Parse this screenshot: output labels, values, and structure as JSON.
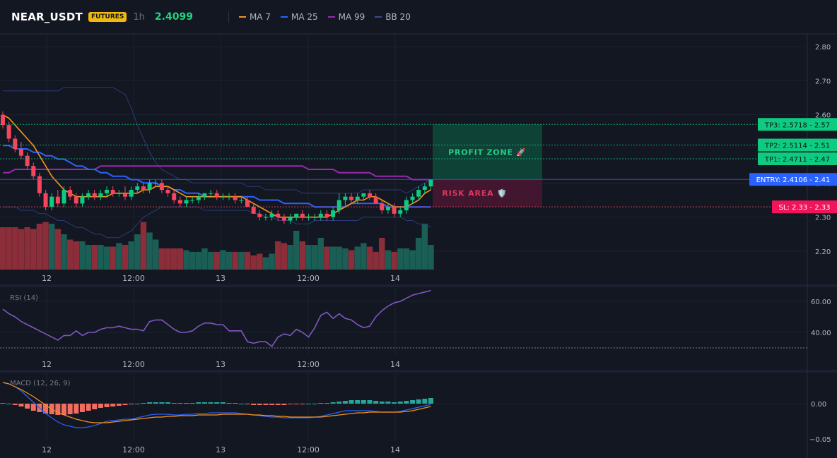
{
  "header": {
    "symbol": "NEAR_USDT",
    "badge": "FUTURES",
    "timeframe": "1h",
    "last_price": "2.4099",
    "legend": [
      {
        "label": "MA 7",
        "color": "#f7931a"
      },
      {
        "label": "MA 25",
        "color": "#2962ff"
      },
      {
        "label": "MA 99",
        "color": "#9c27b0"
      },
      {
        "label": "BB 20",
        "color": "#3a4a8a"
      }
    ]
  },
  "colors": {
    "up": "#26a69a",
    "up_bright": "#0ecb81",
    "down": "#f6465d",
    "vol_up": "#1b5e56",
    "vol_down": "#8b2e3a",
    "rsi": "#7e57c2"
  },
  "x_axis_labels": [
    "12",
    "12:00",
    "13",
    "12:00",
    "14"
  ],
  "chart_data": [
    {
      "type": "candlestick",
      "panel": "price",
      "ylim": [
        2.15,
        2.83
      ],
      "y_ticks": [
        "2.80",
        "2.70",
        "2.60",
        "2.40",
        "2.30",
        "2.20"
      ],
      "candles_ohlc": [
        [
          2.6,
          2.61,
          2.56,
          2.57
        ],
        [
          2.57,
          2.58,
          2.52,
          2.53
        ],
        [
          2.53,
          2.54,
          2.49,
          2.5
        ],
        [
          2.5,
          2.52,
          2.47,
          2.48
        ],
        [
          2.48,
          2.49,
          2.44,
          2.45
        ],
        [
          2.45,
          2.46,
          2.41,
          2.42
        ],
        [
          2.42,
          2.43,
          2.36,
          2.37
        ],
        [
          2.37,
          2.38,
          2.32,
          2.33
        ],
        [
          2.33,
          2.37,
          2.32,
          2.36
        ],
        [
          2.36,
          2.38,
          2.33,
          2.34
        ],
        [
          2.34,
          2.39,
          2.33,
          2.38
        ],
        [
          2.38,
          2.39,
          2.35,
          2.36
        ],
        [
          2.36,
          2.37,
          2.33,
          2.34
        ],
        [
          2.34,
          2.37,
          2.33,
          2.36
        ],
        [
          2.36,
          2.38,
          2.35,
          2.37
        ],
        [
          2.37,
          2.38,
          2.35,
          2.36
        ],
        [
          2.36,
          2.38,
          2.35,
          2.37
        ],
        [
          2.37,
          2.39,
          2.36,
          2.38
        ],
        [
          2.38,
          2.39,
          2.36,
          2.37
        ],
        [
          2.37,
          2.38,
          2.36,
          2.37
        ],
        [
          2.37,
          2.39,
          2.35,
          2.36
        ],
        [
          2.36,
          2.39,
          2.35,
          2.38
        ],
        [
          2.38,
          2.4,
          2.37,
          2.39
        ],
        [
          2.39,
          2.4,
          2.37,
          2.38
        ],
        [
          2.38,
          2.41,
          2.37,
          2.4
        ],
        [
          2.4,
          2.41,
          2.39,
          2.4
        ],
        [
          2.4,
          2.41,
          2.37,
          2.38
        ],
        [
          2.38,
          2.39,
          2.36,
          2.37
        ],
        [
          2.37,
          2.38,
          2.34,
          2.35
        ],
        [
          2.35,
          2.36,
          2.33,
          2.34
        ],
        [
          2.34,
          2.36,
          2.33,
          2.35
        ],
        [
          2.35,
          2.36,
          2.34,
          2.35
        ],
        [
          2.35,
          2.37,
          2.34,
          2.36
        ],
        [
          2.36,
          2.37,
          2.35,
          2.37
        ],
        [
          2.37,
          2.38,
          2.36,
          2.37
        ],
        [
          2.37,
          2.38,
          2.35,
          2.36
        ],
        [
          2.36,
          2.37,
          2.35,
          2.36
        ],
        [
          2.36,
          2.37,
          2.35,
          2.36
        ],
        [
          2.36,
          2.37,
          2.34,
          2.35
        ],
        [
          2.35,
          2.36,
          2.34,
          2.35
        ],
        [
          2.35,
          2.36,
          2.33,
          2.33
        ],
        [
          2.33,
          2.34,
          2.31,
          2.31
        ],
        [
          2.31,
          2.32,
          2.29,
          2.3
        ],
        [
          2.3,
          2.31,
          2.29,
          2.3
        ],
        [
          2.3,
          2.32,
          2.29,
          2.31
        ],
        [
          2.31,
          2.32,
          2.29,
          2.3
        ],
        [
          2.3,
          2.31,
          2.28,
          2.29
        ],
        [
          2.29,
          2.31,
          2.28,
          2.3
        ],
        [
          2.3,
          2.31,
          2.29,
          2.31
        ],
        [
          2.31,
          2.32,
          2.29,
          2.3
        ],
        [
          2.3,
          2.31,
          2.29,
          2.3
        ],
        [
          2.3,
          2.31,
          2.29,
          2.3
        ],
        [
          2.3,
          2.32,
          2.29,
          2.31
        ],
        [
          2.31,
          2.32,
          2.29,
          2.3
        ],
        [
          2.3,
          2.33,
          2.29,
          2.32
        ],
        [
          2.32,
          2.37,
          2.31,
          2.35
        ],
        [
          2.35,
          2.37,
          2.33,
          2.36
        ],
        [
          2.36,
          2.37,
          2.34,
          2.35
        ],
        [
          2.35,
          2.37,
          2.34,
          2.36
        ],
        [
          2.36,
          2.37,
          2.35,
          2.37
        ],
        [
          2.37,
          2.38,
          2.35,
          2.36
        ],
        [
          2.36,
          2.37,
          2.34,
          2.34
        ],
        [
          2.34,
          2.35,
          2.31,
          2.32
        ],
        [
          2.32,
          2.34,
          2.31,
          2.33
        ],
        [
          2.33,
          2.34,
          2.3,
          2.31
        ],
        [
          2.31,
          2.33,
          2.3,
          2.32
        ],
        [
          2.32,
          2.36,
          2.31,
          2.35
        ],
        [
          2.35,
          2.37,
          2.34,
          2.36
        ],
        [
          2.36,
          2.39,
          2.35,
          2.38
        ],
        [
          2.38,
          2.4,
          2.37,
          2.39
        ],
        [
          2.39,
          2.41,
          2.38,
          2.41
        ]
      ],
      "volume": [
        24,
        24,
        24,
        23,
        24,
        23,
        26,
        27,
        26,
        23,
        20,
        17,
        16,
        16,
        14,
        14,
        14,
        13,
        13,
        15,
        14,
        16,
        20,
        27,
        21,
        17,
        12,
        12,
        12,
        12,
        11,
        10,
        10,
        12,
        10,
        10,
        11,
        10,
        10,
        10,
        10,
        8,
        9,
        7,
        9,
        16,
        15,
        14,
        22,
        16,
        14,
        14,
        18,
        13,
        13,
        13,
        12,
        11,
        13,
        15,
        13,
        10,
        18,
        11,
        10,
        12,
        12,
        11,
        18,
        26,
        14
      ],
      "volume_scale_max": 30,
      "ma7": [
        2.6,
        2.59,
        2.57,
        2.55,
        2.53,
        2.51,
        2.48,
        2.45,
        2.42,
        2.4,
        2.38,
        2.37,
        2.36,
        2.36,
        2.36,
        2.36,
        2.36,
        2.36,
        2.37,
        2.37,
        2.37,
        2.37,
        2.37,
        2.38,
        2.38,
        2.39,
        2.39,
        2.39,
        2.38,
        2.37,
        2.36,
        2.36,
        2.36,
        2.36,
        2.36,
        2.36,
        2.36,
        2.36,
        2.36,
        2.36,
        2.35,
        2.34,
        2.33,
        2.32,
        2.31,
        2.3,
        2.3,
        2.3,
        2.3,
        2.3,
        2.3,
        2.3,
        2.3,
        2.3,
        2.31,
        2.32,
        2.33,
        2.34,
        2.35,
        2.35,
        2.36,
        2.36,
        2.35,
        2.34,
        2.33,
        2.33,
        2.33,
        2.34,
        2.35,
        2.37,
        2.38
      ],
      "ma25": [
        2.51,
        2.51,
        2.5,
        2.5,
        2.5,
        2.49,
        2.49,
        2.48,
        2.48,
        2.47,
        2.47,
        2.46,
        2.45,
        2.45,
        2.44,
        2.44,
        2.43,
        2.43,
        2.42,
        2.42,
        2.42,
        2.41,
        2.41,
        2.4,
        2.4,
        2.4,
        2.39,
        2.39,
        2.38,
        2.38,
        2.37,
        2.37,
        2.37,
        2.36,
        2.36,
        2.36,
        2.36,
        2.36,
        2.36,
        2.36,
        2.36,
        2.36,
        2.35,
        2.35,
        2.35,
        2.35,
        2.34,
        2.34,
        2.34,
        2.34,
        2.34,
        2.33,
        2.33,
        2.33,
        2.33,
        2.33,
        2.33,
        2.34,
        2.34,
        2.34,
        2.34,
        2.34,
        2.34,
        2.33,
        2.33,
        2.33,
        2.33,
        2.33,
        2.33,
        2.33,
        2.33
      ],
      "ma99": [
        2.43,
        2.43,
        2.44,
        2.44,
        2.44,
        2.44,
        2.44,
        2.44,
        2.44,
        2.44,
        2.44,
        2.44,
        2.44,
        2.44,
        2.44,
        2.44,
        2.45,
        2.45,
        2.45,
        2.45,
        2.45,
        2.45,
        2.45,
        2.45,
        2.45,
        2.45,
        2.45,
        2.45,
        2.45,
        2.45,
        2.45,
        2.45,
        2.45,
        2.45,
        2.45,
        2.45,
        2.45,
        2.45,
        2.45,
        2.45,
        2.45,
        2.45,
        2.45,
        2.45,
        2.45,
        2.45,
        2.45,
        2.45,
        2.45,
        2.45,
        2.44,
        2.44,
        2.44,
        2.44,
        2.44,
        2.43,
        2.43,
        2.43,
        2.43,
        2.43,
        2.43,
        2.42,
        2.42,
        2.42,
        2.42,
        2.42,
        2.42,
        2.41,
        2.41,
        2.41,
        2.41
      ],
      "bb_upper": [
        2.67,
        2.67,
        2.67,
        2.67,
        2.67,
        2.67,
        2.67,
        2.67,
        2.67,
        2.67,
        2.68,
        2.68,
        2.68,
        2.68,
        2.68,
        2.68,
        2.68,
        2.68,
        2.68,
        2.67,
        2.66,
        2.62,
        2.57,
        2.53,
        2.49,
        2.46,
        2.44,
        2.43,
        2.42,
        2.41,
        2.41,
        2.4,
        2.4,
        2.4,
        2.4,
        2.4,
        2.4,
        2.4,
        2.4,
        2.4,
        2.39,
        2.39,
        2.39,
        2.38,
        2.38,
        2.38,
        2.38,
        2.38,
        2.38,
        2.37,
        2.37,
        2.37,
        2.37,
        2.37,
        2.37,
        2.37,
        2.37,
        2.37,
        2.37,
        2.38,
        2.38,
        2.38,
        2.38,
        2.38,
        2.38,
        2.38,
        2.37,
        2.38,
        2.39,
        2.4,
        2.41
      ],
      "bb_lower": [
        2.33,
        2.33,
        2.33,
        2.32,
        2.32,
        2.32,
        2.31,
        2.31,
        2.3,
        2.29,
        2.29,
        2.28,
        2.27,
        2.27,
        2.26,
        2.25,
        2.25,
        2.24,
        2.24,
        2.24,
        2.25,
        2.26,
        2.28,
        2.3,
        2.31,
        2.32,
        2.33,
        2.33,
        2.33,
        2.33,
        2.33,
        2.33,
        2.33,
        2.32,
        2.32,
        2.32,
        2.32,
        2.32,
        2.32,
        2.32,
        2.32,
        2.31,
        2.31,
        2.3,
        2.3,
        2.29,
        2.29,
        2.29,
        2.28,
        2.28,
        2.28,
        2.29,
        2.29,
        2.29,
        2.29,
        2.29,
        2.29,
        2.29,
        2.29,
        2.3,
        2.3,
        2.3,
        2.3,
        2.3,
        2.3,
        2.3,
        2.29,
        2.29,
        2.28,
        2.28,
        2.27
      ]
    },
    {
      "type": "line",
      "panel": "rsi",
      "title": "RSI (14)",
      "ylim": [
        25,
        70
      ],
      "y_ticks": [
        "60.00",
        "40.00"
      ],
      "oversold_level": 30,
      "values": [
        55,
        52,
        50,
        47,
        45,
        43,
        41,
        39,
        37,
        35,
        38,
        38,
        41,
        38,
        40,
        40,
        42,
        43,
        43,
        44,
        43,
        42,
        42,
        41,
        47,
        48,
        48,
        45,
        42,
        40,
        40,
        41,
        44,
        46,
        46,
        45,
        45,
        41,
        41,
        41,
        34,
        33,
        34,
        34,
        31,
        37,
        39,
        38,
        42,
        40,
        37,
        43,
        51,
        53,
        49,
        52,
        49,
        48,
        45,
        43,
        44,
        50,
        54,
        57,
        59,
        60,
        62,
        64,
        65,
        66,
        67
      ]
    },
    {
      "type": "bar",
      "panel": "macd",
      "title": "MACD (12, 26, 9)",
      "ylim": [
        -0.05,
        0.04
      ],
      "y_ticks": [
        "0.00",
        "−0.05"
      ],
      "histogram": [
        0.001,
        0.0,
        -0.002,
        -0.004,
        -0.007,
        -0.01,
        -0.012,
        -0.014,
        -0.015,
        -0.016,
        -0.016,
        -0.015,
        -0.014,
        -0.012,
        -0.01,
        -0.008,
        -0.006,
        -0.005,
        -0.004,
        -0.003,
        -0.002,
        -0.001,
        0.0,
        0.001,
        0.002,
        0.002,
        0.002,
        0.002,
        0.001,
        0.001,
        0.001,
        0.001,
        0.002,
        0.002,
        0.002,
        0.002,
        0.002,
        0.001,
        0.001,
        0.0,
        -0.001,
        -0.002,
        -0.002,
        -0.002,
        -0.002,
        -0.002,
        -0.002,
        -0.001,
        -0.001,
        -0.001,
        0.0,
        0.0,
        0.001,
        0.001,
        0.002,
        0.003,
        0.004,
        0.005,
        0.005,
        0.005,
        0.005,
        0.004,
        0.003,
        0.003,
        0.002,
        0.003,
        0.004,
        0.005,
        0.006,
        0.007,
        0.008
      ],
      "macd_line": [
        0.03,
        0.028,
        0.024,
        0.018,
        0.01,
        0.002,
        -0.006,
        -0.014,
        -0.02,
        -0.026,
        -0.03,
        -0.032,
        -0.034,
        -0.034,
        -0.033,
        -0.031,
        -0.028,
        -0.025,
        -0.024,
        -0.023,
        -0.022,
        -0.022,
        -0.02,
        -0.018,
        -0.016,
        -0.015,
        -0.015,
        -0.015,
        -0.016,
        -0.016,
        -0.015,
        -0.015,
        -0.014,
        -0.014,
        -0.013,
        -0.013,
        -0.013,
        -0.013,
        -0.013,
        -0.014,
        -0.015,
        -0.016,
        -0.017,
        -0.018,
        -0.019,
        -0.019,
        -0.02,
        -0.02,
        -0.02,
        -0.02,
        -0.02,
        -0.019,
        -0.018,
        -0.016,
        -0.014,
        -0.012,
        -0.01,
        -0.01,
        -0.01,
        -0.01,
        -0.01,
        -0.011,
        -0.012,
        -0.012,
        -0.012,
        -0.011,
        -0.009,
        -0.007,
        -0.005,
        -0.003,
        -0.001
      ],
      "signal_line": [
        0.03,
        0.028,
        0.024,
        0.02,
        0.015,
        0.01,
        0.004,
        -0.002,
        -0.008,
        -0.012,
        -0.016,
        -0.019,
        -0.022,
        -0.024,
        -0.026,
        -0.027,
        -0.027,
        -0.027,
        -0.026,
        -0.025,
        -0.024,
        -0.023,
        -0.022,
        -0.021,
        -0.02,
        -0.019,
        -0.019,
        -0.018,
        -0.018,
        -0.017,
        -0.017,
        -0.017,
        -0.016,
        -0.016,
        -0.016,
        -0.016,
        -0.015,
        -0.015,
        -0.015,
        -0.015,
        -0.015,
        -0.016,
        -0.016,
        -0.017,
        -0.017,
        -0.018,
        -0.018,
        -0.019,
        -0.019,
        -0.019,
        -0.019,
        -0.019,
        -0.019,
        -0.018,
        -0.017,
        -0.016,
        -0.015,
        -0.014,
        -0.013,
        -0.013,
        -0.012,
        -0.012,
        -0.012,
        -0.012,
        -0.012,
        -0.012,
        -0.011,
        -0.01,
        -0.008,
        -0.006,
        -0.004
      ]
    }
  ],
  "levels": {
    "tp3": {
      "value": 2.5718,
      "label": "TP3: 2.5718 - 2.57"
    },
    "tp2": {
      "value": 2.5114,
      "label": "TP2: 2.5114 - 2.51"
    },
    "tp1": {
      "value": 2.4711,
      "label": "TP1: 2.4711 - 2.47"
    },
    "entry": {
      "value": 2.4106,
      "label": "ENTRY: 2.4106 - 2.41"
    },
    "sl": {
      "value": 2.33,
      "label": "SL: 2.33 - 2.33"
    }
  },
  "zones": {
    "profit": {
      "label": "PROFIT ZONE 🚀"
    },
    "risk": {
      "label": "RISK AREA 🛡️"
    }
  }
}
